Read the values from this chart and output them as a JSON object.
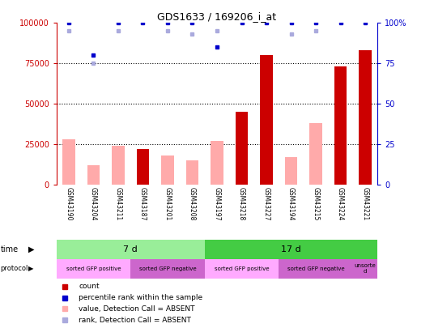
{
  "title": "GDS1633 / 169206_i_at",
  "samples": [
    "GSM43190",
    "GSM43204",
    "GSM43211",
    "GSM43187",
    "GSM43201",
    "GSM43208",
    "GSM43197",
    "GSM43218",
    "GSM43227",
    "GSM43194",
    "GSM43215",
    "GSM43224",
    "GSM43221"
  ],
  "count_values": [
    null,
    null,
    null,
    22000,
    null,
    null,
    null,
    45000,
    80000,
    null,
    null,
    73000,
    83000
  ],
  "value_absent": [
    28000,
    12000,
    24000,
    null,
    18000,
    15000,
    27000,
    null,
    null,
    17000,
    38000,
    null,
    null
  ],
  "rank_values": [
    100,
    80,
    100,
    100,
    100,
    100,
    85,
    100,
    100,
    100,
    100,
    100,
    100
  ],
  "rank_absent": [
    95,
    75,
    95,
    null,
    95,
    93,
    95,
    null,
    null,
    93,
    95,
    null,
    null
  ],
  "ylim_left": [
    0,
    100000
  ],
  "ylim_right": [
    0,
    100
  ],
  "yticks_left": [
    0,
    25000,
    50000,
    75000,
    100000
  ],
  "yticks_right": [
    0,
    25,
    50,
    75,
    100
  ],
  "left_color": "#cc0000",
  "right_color": "#0000cc",
  "bar_dark_color": "#cc0000",
  "bar_light_color": "#ffaaaa",
  "dot_dark_color": "#0000cc",
  "dot_light_color": "#aaaadd",
  "time_7d_color": "#99ee99",
  "time_17d_color": "#44cc44",
  "proto_pos_color": "#ffaaff",
  "proto_neg_color": "#cc66cc",
  "proto_unsorted_color": "#cc66cc",
  "sample_bg_color": "#cccccc",
  "bg_color": "#ffffff",
  "time_groups": [
    {
      "label": "7 d",
      "start": 0,
      "end": 6,
      "color": "#99ee99"
    },
    {
      "label": "17 d",
      "start": 6,
      "end": 13,
      "color": "#44cc44"
    }
  ],
  "protocol_groups": [
    {
      "label": "sorted GFP positive",
      "start": 0,
      "end": 3,
      "color": "#ffaaff"
    },
    {
      "label": "sorted GFP negative",
      "start": 3,
      "end": 6,
      "color": "#cc66cc"
    },
    {
      "label": "sorted GFP positive",
      "start": 6,
      "end": 9,
      "color": "#ffaaff"
    },
    {
      "label": "sorted GFP negative",
      "start": 9,
      "end": 12,
      "color": "#cc66cc"
    },
    {
      "label": "unsorte\nd",
      "start": 12,
      "end": 13,
      "color": "#cc66cc"
    }
  ]
}
